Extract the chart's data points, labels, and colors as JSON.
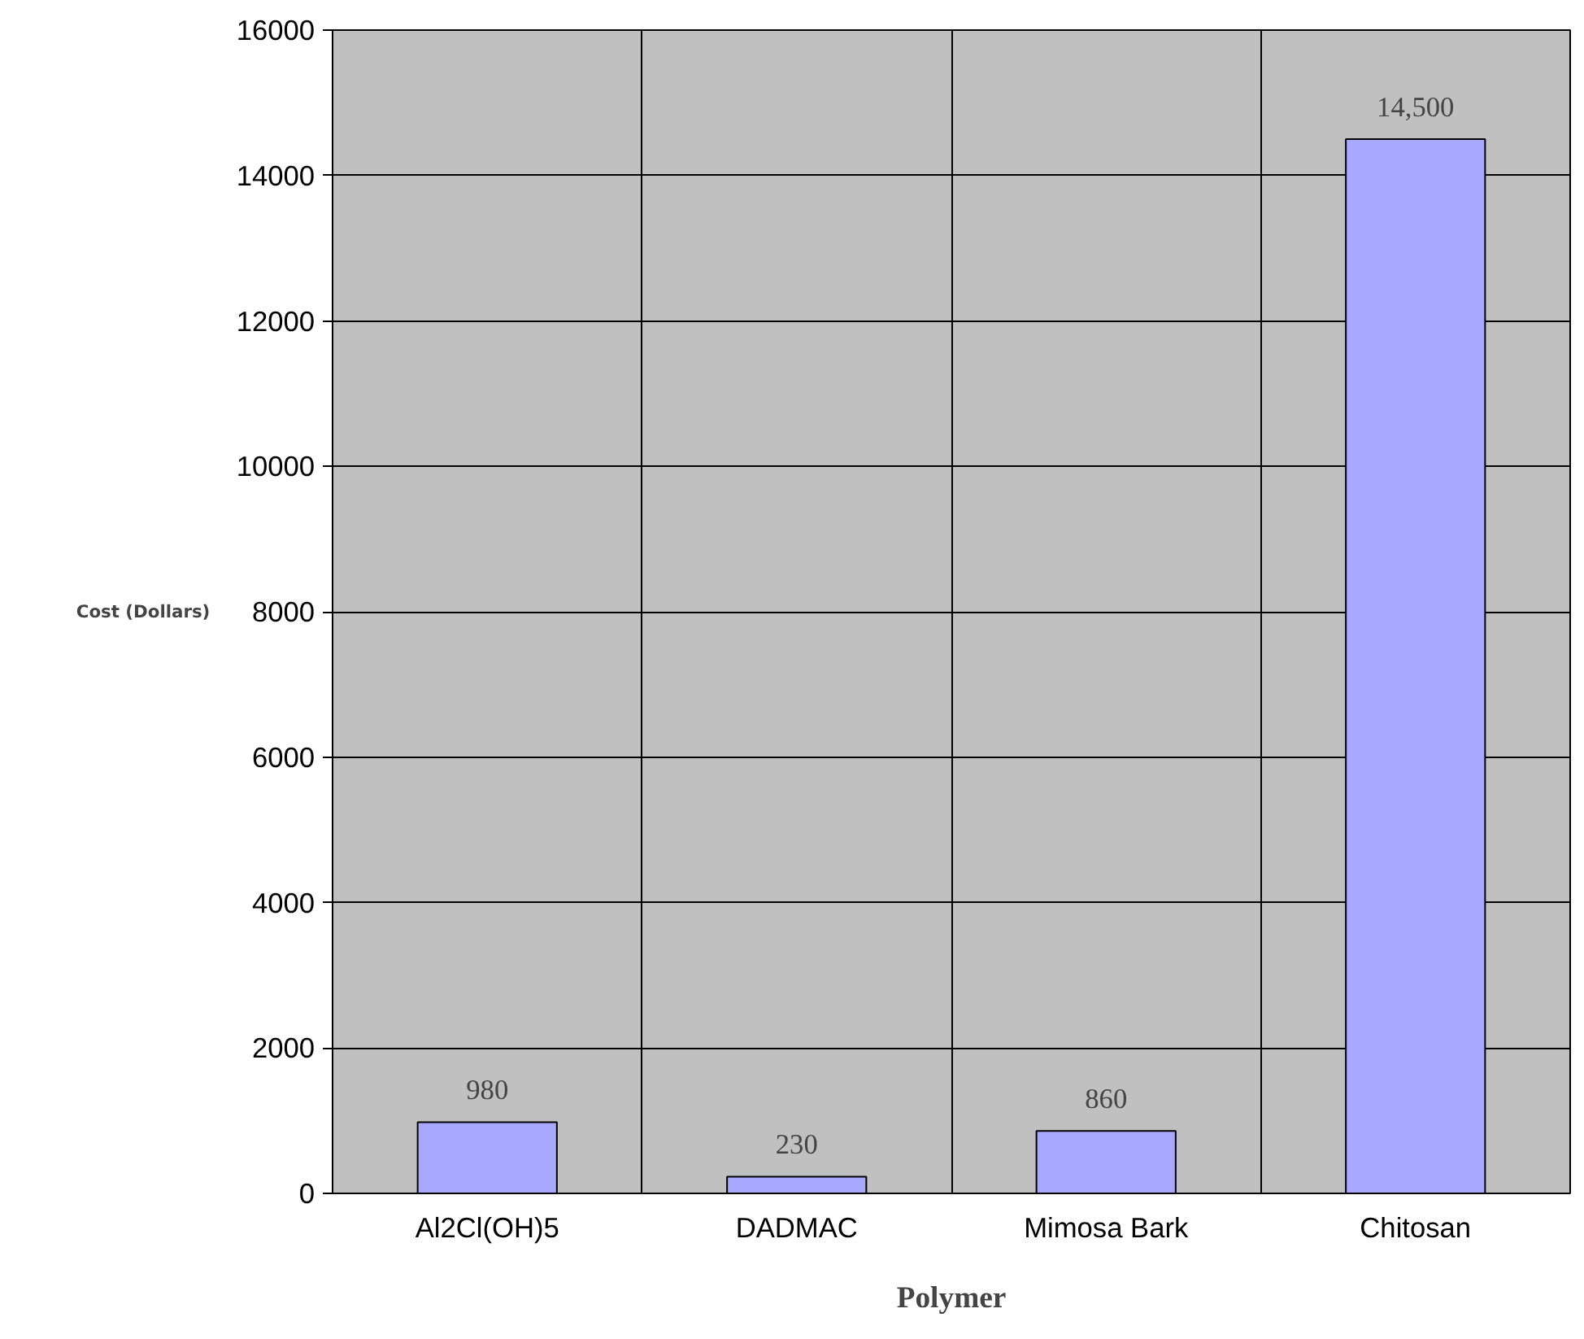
{
  "chart_data": {
    "type": "bar",
    "xlabel": "Polymer",
    "ylabel": "Cost    (Dollars)",
    "categories": [
      "Al2Cl(OH)5",
      "DADMAC",
      "Mimosa Bark",
      "Chitosan"
    ],
    "values": [
      980,
      230,
      860,
      14500
    ],
    "value_labels": [
      "980",
      "230",
      "860",
      "14,500"
    ],
    "color": "#a8a8ff",
    "ylim": [
      0,
      16000
    ],
    "yticks": [
      0,
      2000,
      4000,
      6000,
      8000,
      10000,
      12000,
      14000,
      16000
    ],
    "grid": true
  }
}
